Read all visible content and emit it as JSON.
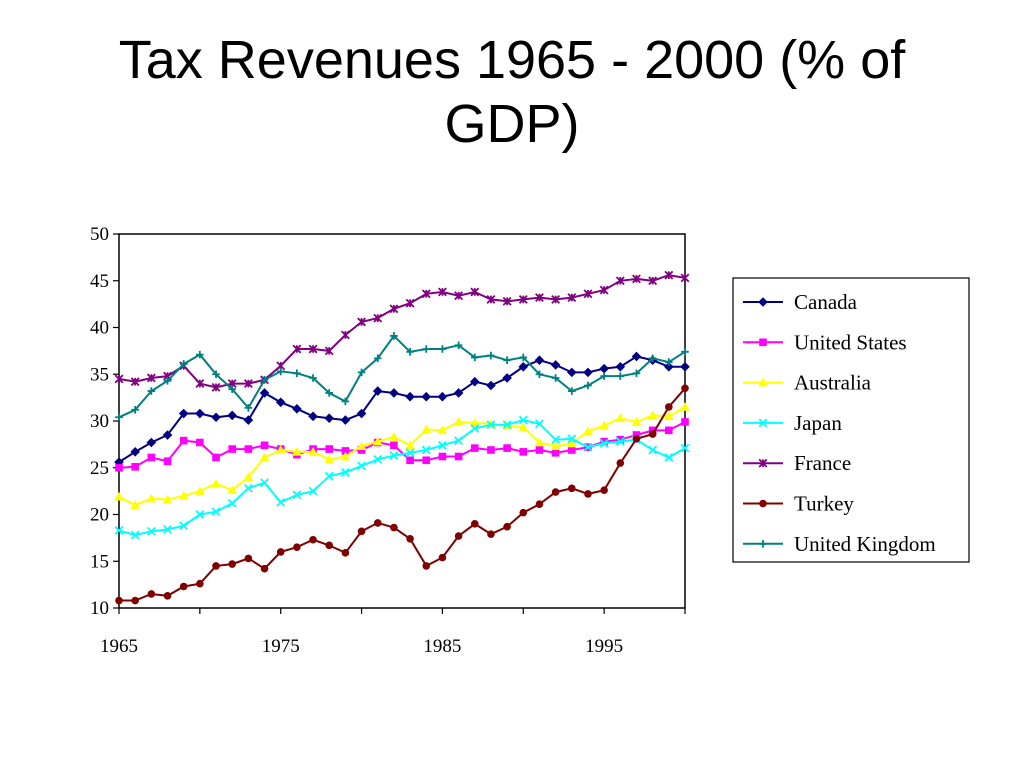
{
  "title": "Tax Revenues 1965 - 2000 (% of GDP)",
  "chart_data": {
    "type": "line",
    "title": "Tax Revenues 1965 - 2000 (% of GDP)",
    "xlabel": "",
    "ylabel": "",
    "xlim": [
      1965,
      2000
    ],
    "ylim": [
      10,
      50
    ],
    "x_ticks": [
      1965,
      1975,
      1985,
      1995
    ],
    "y_ticks": [
      10,
      15,
      20,
      25,
      30,
      35,
      40,
      45,
      50
    ],
    "grid": false,
    "legend_position": "right",
    "x": [
      1965,
      1966,
      1967,
      1968,
      1969,
      1970,
      1971,
      1972,
      1973,
      1974,
      1975,
      1976,
      1977,
      1978,
      1979,
      1980,
      1981,
      1982,
      1983,
      1984,
      1985,
      1986,
      1987,
      1988,
      1989,
      1990,
      1991,
      1992,
      1993,
      1994,
      1995,
      1996,
      1997,
      1998,
      1999,
      2000
    ],
    "series": [
      {
        "name": "Canada",
        "color": "#000080",
        "marker": "diamond",
        "values": [
          25.6,
          26.7,
          27.7,
          28.5,
          30.8,
          30.8,
          30.4,
          30.6,
          30.1,
          33.0,
          32.0,
          31.3,
          30.5,
          30.3,
          30.1,
          30.8,
          33.2,
          33.0,
          32.6,
          32.6,
          32.6,
          33.0,
          34.2,
          33.8,
          34.6,
          35.8,
          36.5,
          36.0,
          35.2,
          35.2,
          35.6,
          35.8,
          36.9,
          36.5,
          35.8,
          35.8
        ]
      },
      {
        "name": "United States",
        "color": "#ff00ff",
        "marker": "square",
        "values": [
          25.0,
          25.1,
          26.1,
          25.7,
          27.9,
          27.7,
          26.1,
          27.0,
          27.0,
          27.4,
          27.0,
          26.4,
          27.0,
          27.0,
          26.8,
          26.9,
          27.7,
          27.4,
          25.8,
          25.8,
          26.2,
          26.2,
          27.1,
          26.9,
          27.1,
          26.7,
          26.9,
          26.6,
          26.9,
          27.2,
          27.8,
          28.0,
          28.5,
          29.0,
          29.0,
          29.9
        ]
      },
      {
        "name": "Australia",
        "color": "#ffff00",
        "marker": "triangle",
        "values": [
          21.9,
          21.0,
          21.7,
          21.6,
          22.0,
          22.5,
          23.3,
          22.6,
          24.0,
          26.1,
          26.9,
          26.7,
          26.7,
          25.9,
          26.2,
          27.3,
          27.8,
          28.3,
          27.4,
          29.1,
          29.0,
          29.9,
          29.8,
          29.7,
          29.5,
          29.3,
          27.7,
          27.3,
          27.6,
          28.9,
          29.5,
          30.3,
          29.9,
          30.6,
          30.5,
          31.5
        ]
      },
      {
        "name": "Japan",
        "color": "#00ffff",
        "marker": "x",
        "values": [
          18.3,
          17.8,
          18.2,
          18.4,
          18.8,
          20.0,
          20.3,
          21.2,
          22.8,
          23.4,
          21.3,
          22.1,
          22.5,
          24.1,
          24.5,
          25.2,
          25.9,
          26.3,
          26.6,
          26.9,
          27.4,
          27.9,
          29.2,
          29.6,
          29.6,
          30.1,
          29.7,
          28.0,
          28.1,
          27.2,
          27.6,
          27.8,
          28.0,
          26.9,
          26.1,
          27.1
        ]
      },
      {
        "name": "France",
        "color": "#800080",
        "marker": "star",
        "values": [
          34.5,
          34.2,
          34.6,
          34.8,
          35.9,
          34.0,
          33.6,
          34.0,
          34.0,
          34.4,
          35.9,
          37.7,
          37.7,
          37.5,
          39.2,
          40.6,
          41.0,
          42.0,
          42.6,
          43.6,
          43.8,
          43.4,
          43.8,
          43.0,
          42.8,
          43.0,
          43.2,
          43.0,
          43.2,
          43.6,
          44.0,
          45.0,
          45.2,
          45.0,
          45.6,
          45.3
        ]
      },
      {
        "name": "Turkey",
        "color": "#800000",
        "marker": "circle",
        "values": [
          10.8,
          10.8,
          11.5,
          11.3,
          12.3,
          12.6,
          14.5,
          14.7,
          15.3,
          14.2,
          16.0,
          16.5,
          17.3,
          16.7,
          15.9,
          18.2,
          19.1,
          18.6,
          17.4,
          14.5,
          15.4,
          17.7,
          19.0,
          17.9,
          18.7,
          20.2,
          21.1,
          22.4,
          22.8,
          22.2,
          22.6,
          25.5,
          28.1,
          28.6,
          31.5,
          33.5
        ]
      },
      {
        "name": "United Kingdom",
        "color": "#008080",
        "marker": "plus",
        "values": [
          30.4,
          31.2,
          33.2,
          34.3,
          36.1,
          37.1,
          35.0,
          33.4,
          31.4,
          34.4,
          35.3,
          35.1,
          34.6,
          33.0,
          32.1,
          35.2,
          36.7,
          39.1,
          37.4,
          37.7,
          37.7,
          38.1,
          36.8,
          37.0,
          36.5,
          36.8,
          35.0,
          34.6,
          33.2,
          33.8,
          34.8,
          34.8,
          35.1,
          36.7,
          36.3,
          37.4
        ]
      }
    ]
  }
}
